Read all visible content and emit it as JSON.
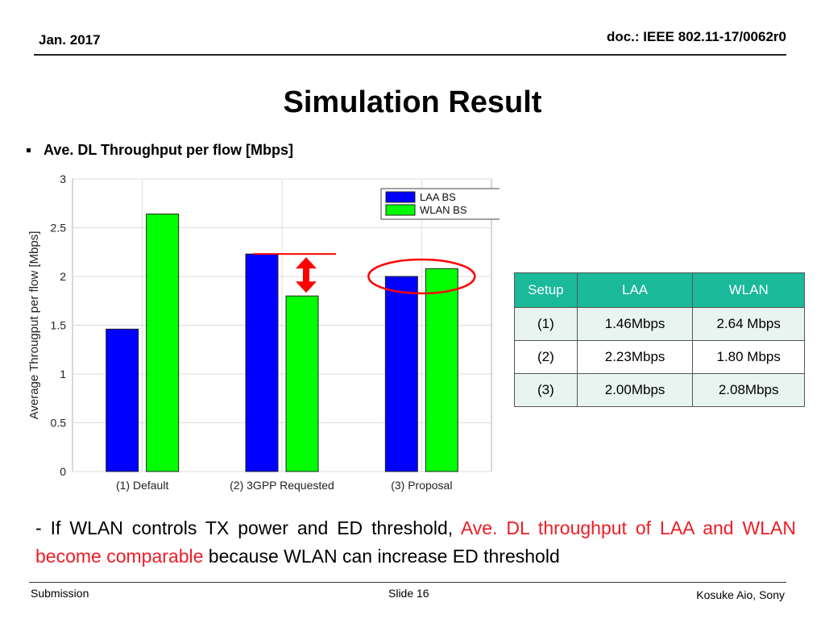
{
  "header": {
    "date": "Jan. 2017",
    "doc": "doc.: IEEE 802.11-17/0062r0"
  },
  "title": "Simulation Result",
  "bullet": "Ave. DL Throughput per flow [Mbps]",
  "chart_data": {
    "type": "bar",
    "title": "",
    "xlabel": "",
    "ylabel": "Average Througput per flow [Mbps]",
    "categories": [
      "(1) Default",
      "(2) 3GPP Requested",
      "(3) Proposal"
    ],
    "series": [
      {
        "name": "LAA BS",
        "values": [
          1.46,
          2.23,
          2.0
        ],
        "color": "#0000ff"
      },
      {
        "name": "WLAN BS",
        "values": [
          2.64,
          1.8,
          2.08
        ],
        "color": "#00ff00"
      }
    ],
    "ylim": [
      0,
      3
    ],
    "yticks": [
      "0",
      "0.5",
      "1",
      "1.5",
      "2",
      "2.5",
      "3"
    ],
    "grid": true,
    "legend": "top-right",
    "annotation_color": "#ff0000"
  },
  "table": {
    "headers": [
      "Setup",
      "LAA",
      "WLAN"
    ],
    "rows": [
      [
        "(1)",
        "1.46Mbps",
        "2.64 Mbps"
      ],
      [
        "(2)",
        "2.23Mbps",
        "1.80 Mbps"
      ],
      [
        "(3)",
        "2.00Mbps",
        "2.08Mbps"
      ]
    ]
  },
  "body": {
    "prefix": "- If WLAN controls TX power and ED threshold, ",
    "highlight": "Ave. DL throughput of LAA and WLAN become comparable",
    "suffix": " because WLAN can increase ED threshold"
  },
  "footer": {
    "left": "Submission",
    "center": "Slide 16",
    "right": "Kosuke Aio, Sony"
  }
}
